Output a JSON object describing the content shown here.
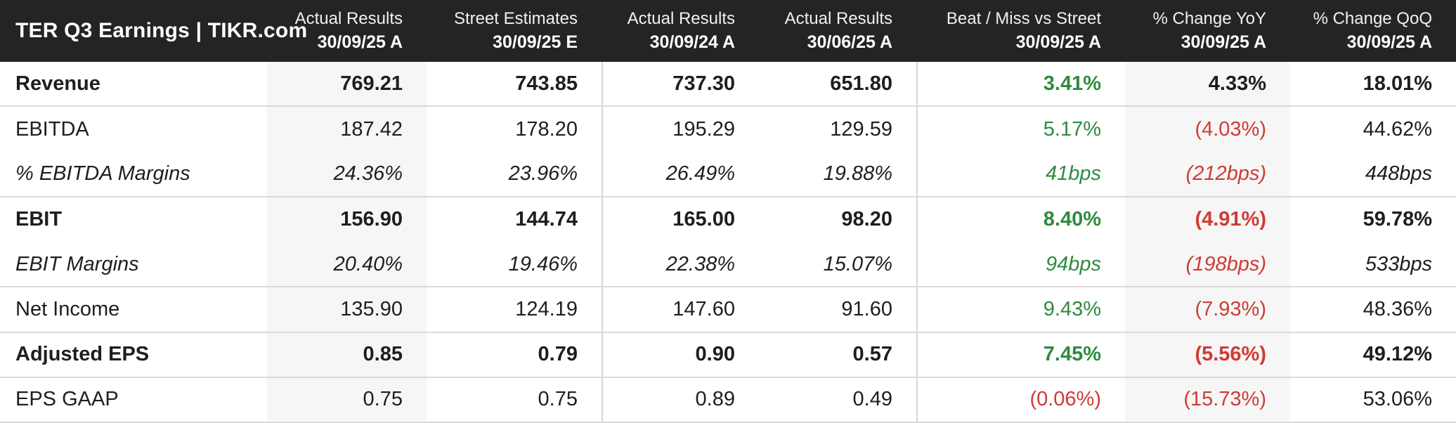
{
  "header": {
    "title": "TER Q3 Earnings | TIKR.com",
    "columns": [
      {
        "line1": "Actual Results",
        "line2": "30/09/25 A",
        "shaded": true,
        "divider_left": false
      },
      {
        "line1": "Street Estimates",
        "line2": "30/09/25 E",
        "shaded": false,
        "divider_left": false
      },
      {
        "line1": "Actual Results",
        "line2": "30/09/24 A",
        "shaded": false,
        "divider_left": true
      },
      {
        "line1": "Actual Results",
        "line2": "30/06/25 A",
        "shaded": false,
        "divider_left": false
      },
      {
        "line1": "Beat / Miss vs Street",
        "line2": "30/09/25 A",
        "shaded": false,
        "divider_left": true
      },
      {
        "line1": "% Change YoY",
        "line2": "30/09/25 A",
        "shaded": true,
        "divider_left": false
      },
      {
        "line1": "% Change QoQ",
        "line2": "30/09/25 A",
        "shaded": false,
        "divider_left": false
      }
    ]
  },
  "rows": [
    {
      "label": "Revenue",
      "style": "bold",
      "group_end": true,
      "values": [
        {
          "text": "769.21",
          "color": "dark"
        },
        {
          "text": "743.85",
          "color": "dark"
        },
        {
          "text": "737.30",
          "color": "dark"
        },
        {
          "text": "651.80",
          "color": "dark"
        },
        {
          "text": "3.41%",
          "color": "green"
        },
        {
          "text": "4.33%",
          "color": "dark"
        },
        {
          "text": "18.01%",
          "color": "dark"
        }
      ]
    },
    {
      "label": "EBITDA",
      "style": "regular",
      "group_end": false,
      "values": [
        {
          "text": "187.42",
          "color": "dark"
        },
        {
          "text": "178.20",
          "color": "dark"
        },
        {
          "text": "195.29",
          "color": "dark"
        },
        {
          "text": "129.59",
          "color": "dark"
        },
        {
          "text": "5.17%",
          "color": "green"
        },
        {
          "text": "(4.03%)",
          "color": "red"
        },
        {
          "text": "44.62%",
          "color": "dark"
        }
      ]
    },
    {
      "label": "% EBITDA Margins",
      "style": "italic",
      "group_end": true,
      "values": [
        {
          "text": "24.36%",
          "color": "dark"
        },
        {
          "text": "23.96%",
          "color": "dark"
        },
        {
          "text": "26.49%",
          "color": "dark"
        },
        {
          "text": "19.88%",
          "color": "dark"
        },
        {
          "text": "41bps",
          "color": "green"
        },
        {
          "text": "(212bps)",
          "color": "red"
        },
        {
          "text": "448bps",
          "color": "dark"
        }
      ]
    },
    {
      "label": "EBIT",
      "style": "bold",
      "group_end": false,
      "values": [
        {
          "text": "156.90",
          "color": "dark"
        },
        {
          "text": "144.74",
          "color": "dark"
        },
        {
          "text": "165.00",
          "color": "dark"
        },
        {
          "text": "98.20",
          "color": "dark"
        },
        {
          "text": "8.40%",
          "color": "green"
        },
        {
          "text": "(4.91%)",
          "color": "red"
        },
        {
          "text": "59.78%",
          "color": "dark"
        }
      ]
    },
    {
      "label": "EBIT Margins",
      "style": "italic",
      "group_end": true,
      "values": [
        {
          "text": "20.40%",
          "color": "dark"
        },
        {
          "text": "19.46%",
          "color": "dark"
        },
        {
          "text": "22.38%",
          "color": "dark"
        },
        {
          "text": "15.07%",
          "color": "dark"
        },
        {
          "text": "94bps",
          "color": "green"
        },
        {
          "text": "(198bps)",
          "color": "red"
        },
        {
          "text": "533bps",
          "color": "dark"
        }
      ]
    },
    {
      "label": "Net Income",
      "style": "regular",
      "group_end": true,
      "values": [
        {
          "text": "135.90",
          "color": "dark"
        },
        {
          "text": "124.19",
          "color": "dark"
        },
        {
          "text": "147.60",
          "color": "dark"
        },
        {
          "text": "91.60",
          "color": "dark"
        },
        {
          "text": "9.43%",
          "color": "green"
        },
        {
          "text": "(7.93%)",
          "color": "red"
        },
        {
          "text": "48.36%",
          "color": "dark"
        }
      ]
    },
    {
      "label": "Adjusted EPS",
      "style": "bold",
      "group_end": true,
      "values": [
        {
          "text": "0.85",
          "color": "dark"
        },
        {
          "text": "0.79",
          "color": "dark"
        },
        {
          "text": "0.90",
          "color": "dark"
        },
        {
          "text": "0.57",
          "color": "dark"
        },
        {
          "text": "7.45%",
          "color": "green"
        },
        {
          "text": "(5.56%)",
          "color": "red"
        },
        {
          "text": "49.12%",
          "color": "dark"
        }
      ]
    },
    {
      "label": "EPS GAAP",
      "style": "regular",
      "group_end": true,
      "values": [
        {
          "text": "0.75",
          "color": "dark"
        },
        {
          "text": "0.75",
          "color": "dark"
        },
        {
          "text": "0.89",
          "color": "dark"
        },
        {
          "text": "0.49",
          "color": "dark"
        },
        {
          "text": "(0.06%)",
          "color": "red"
        },
        {
          "text": "(15.73%)",
          "color": "red"
        },
        {
          "text": "53.06%",
          "color": "dark"
        }
      ]
    }
  ],
  "colors": {
    "header_bg": "#242424",
    "shaded_column_bg": "#f6f6f6",
    "positive": "#2e8b3e",
    "negative": "#d03b34"
  }
}
